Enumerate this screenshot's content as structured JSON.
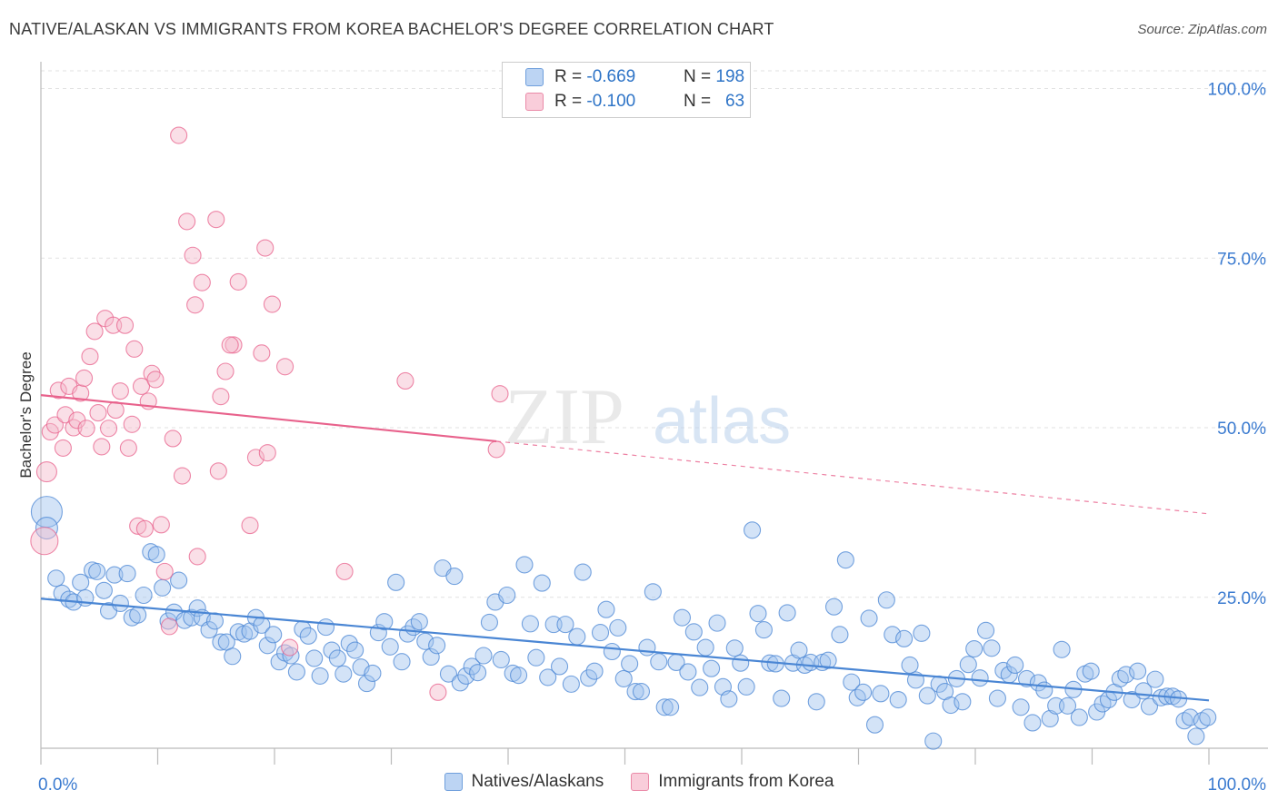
{
  "title": "NATIVE/ALASKAN VS IMMIGRANTS FROM KOREA BACHELOR'S DEGREE CORRELATION CHART",
  "source": "Source: ZipAtlas.com",
  "watermark": {
    "zip": "ZIP",
    "atlas": "atlas"
  },
  "legend_top": [
    {
      "r_label": "R = ",
      "r_value": "-0.669",
      "n_label": "N = ",
      "n_value": "198",
      "color": "#9dc0ee"
    },
    {
      "r_label": "R = ",
      "r_value": "-0.100",
      "n_label": "N = ",
      "n_value": "63",
      "color": "#f5b8ca"
    }
  ],
  "legend_bottom": [
    {
      "label": "Natives/Alaskans",
      "color": "#9dc0ee"
    },
    {
      "label": "Immigrants from Korea",
      "color": "#f5b8ca"
    }
  ],
  "chart_data": {
    "type": "scatter",
    "title": "NATIVE/ALASKAN VS IMMIGRANTS FROM KOREA BACHELOR'S DEGREE CORRELATION CHART",
    "xlabel": "",
    "ylabel": "Bachelor's Degree",
    "xlim": [
      0,
      100
    ],
    "ylim": [
      0,
      105
    ],
    "x_tick_labels": [
      "0.0%",
      "100.0%"
    ],
    "y_tick_labels": [
      "25.0%",
      "50.0%",
      "75.0%",
      "100.0%"
    ],
    "y_ticks": [
      25,
      50,
      75,
      100
    ],
    "grid": true,
    "series": [
      {
        "name": "Natives/Alaskans",
        "color": "#4a86d4",
        "fill": "#9dc0ee",
        "trend": {
          "x": [
            0,
            100
          ],
          "y": [
            24.8,
            9.8
          ],
          "style": "solid"
        },
        "points": [
          [
            0.5,
            37.6
          ],
          [
            0.5,
            35.2
          ],
          [
            1.3,
            27.8
          ],
          [
            1.8,
            25.6
          ],
          [
            2.4,
            24.7
          ],
          [
            2.8,
            24.3
          ],
          [
            3.4,
            27.2
          ],
          [
            3.8,
            24.9
          ],
          [
            4.4,
            29.0
          ],
          [
            4.8,
            28.8
          ],
          [
            5.4,
            26.0
          ],
          [
            5.8,
            23.0
          ],
          [
            6.3,
            28.3
          ],
          [
            6.8,
            24.1
          ],
          [
            7.4,
            28.5
          ],
          [
            7.8,
            22.0
          ],
          [
            8.3,
            22.4
          ],
          [
            8.8,
            25.3
          ],
          [
            9.4,
            31.7
          ],
          [
            9.9,
            31.3
          ],
          [
            10.4,
            26.4
          ],
          [
            10.9,
            21.5
          ],
          [
            11.4,
            22.8
          ],
          [
            11.8,
            27.5
          ],
          [
            12.3,
            21.6
          ],
          [
            12.9,
            22.0
          ],
          [
            13.4,
            23.4
          ],
          [
            13.8,
            22.0
          ],
          [
            14.4,
            20.2
          ],
          [
            14.9,
            21.5
          ],
          [
            15.4,
            18.4
          ],
          [
            15.9,
            18.4
          ],
          [
            16.4,
            16.3
          ],
          [
            16.9,
            19.9
          ],
          [
            17.4,
            19.6
          ],
          [
            17.9,
            20.0
          ],
          [
            18.4,
            22.0
          ],
          [
            18.9,
            20.9
          ],
          [
            19.4,
            17.9
          ],
          [
            19.9,
            19.5
          ],
          [
            20.4,
            15.5
          ],
          [
            20.9,
            16.8
          ],
          [
            21.4,
            16.4
          ],
          [
            21.9,
            14.0
          ],
          [
            22.4,
            20.3
          ],
          [
            22.9,
            19.3
          ],
          [
            23.4,
            16.0
          ],
          [
            23.9,
            13.4
          ],
          [
            24.4,
            20.6
          ],
          [
            24.9,
            17.2
          ],
          [
            25.4,
            16.0
          ],
          [
            25.9,
            13.7
          ],
          [
            26.4,
            18.2
          ],
          [
            26.9,
            17.2
          ],
          [
            27.4,
            14.7
          ],
          [
            27.9,
            12.3
          ],
          [
            28.4,
            13.8
          ],
          [
            28.9,
            19.8
          ],
          [
            29.4,
            21.4
          ],
          [
            29.9,
            17.7
          ],
          [
            30.4,
            27.2
          ],
          [
            30.9,
            15.5
          ],
          [
            31.4,
            19.6
          ],
          [
            31.9,
            20.6
          ],
          [
            32.4,
            21.4
          ],
          [
            32.9,
            18.5
          ],
          [
            33.4,
            16.2
          ],
          [
            33.9,
            17.9
          ],
          [
            34.4,
            29.3
          ],
          [
            34.9,
            13.7
          ],
          [
            35.4,
            28.1
          ],
          [
            35.9,
            12.4
          ],
          [
            36.4,
            13.4
          ],
          [
            36.9,
            14.8
          ],
          [
            37.4,
            13.9
          ],
          [
            37.9,
            16.4
          ],
          [
            38.4,
            21.3
          ],
          [
            38.9,
            24.3
          ],
          [
            39.4,
            15.8
          ],
          [
            39.9,
            25.3
          ],
          [
            40.4,
            13.8
          ],
          [
            40.9,
            13.5
          ],
          [
            41.4,
            29.8
          ],
          [
            41.9,
            21.1
          ],
          [
            42.4,
            16.1
          ],
          [
            42.9,
            27.1
          ],
          [
            43.4,
            13.2
          ],
          [
            43.9,
            21.0
          ],
          [
            44.4,
            14.8
          ],
          [
            44.9,
            21.0
          ],
          [
            45.4,
            12.2
          ],
          [
            45.9,
            19.2
          ],
          [
            46.4,
            28.7
          ],
          [
            46.9,
            13.1
          ],
          [
            47.4,
            14.1
          ],
          [
            47.9,
            19.8
          ],
          [
            48.4,
            23.2
          ],
          [
            48.9,
            17.0
          ],
          [
            49.4,
            20.5
          ],
          [
            49.9,
            13.0
          ],
          [
            50.4,
            15.2
          ],
          [
            50.9,
            11.1
          ],
          [
            51.4,
            11.1
          ],
          [
            51.9,
            17.6
          ],
          [
            52.4,
            25.8
          ],
          [
            52.9,
            15.5
          ],
          [
            53.4,
            8.8
          ],
          [
            53.9,
            8.8
          ],
          [
            54.4,
            15.4
          ],
          [
            54.9,
            22.0
          ],
          [
            55.4,
            14.0
          ],
          [
            55.9,
            19.9
          ],
          [
            56.4,
            11.7
          ],
          [
            56.9,
            17.6
          ],
          [
            57.4,
            14.5
          ],
          [
            57.9,
            21.2
          ],
          [
            58.4,
            11.8
          ],
          [
            58.9,
            10.0
          ],
          [
            59.4,
            17.5
          ],
          [
            59.9,
            15.3
          ],
          [
            60.4,
            11.8
          ],
          [
            60.9,
            34.9
          ],
          [
            61.4,
            22.6
          ],
          [
            61.9,
            20.2
          ],
          [
            62.4,
            15.3
          ],
          [
            62.9,
            15.2
          ],
          [
            63.4,
            10.1
          ],
          [
            63.9,
            22.7
          ],
          [
            64.4,
            15.3
          ],
          [
            64.9,
            17.2
          ],
          [
            65.4,
            15.0
          ],
          [
            65.9,
            15.4
          ],
          [
            66.4,
            9.6
          ],
          [
            66.9,
            15.4
          ],
          [
            67.4,
            15.7
          ],
          [
            67.9,
            23.6
          ],
          [
            68.4,
            19.5
          ],
          [
            68.9,
            30.5
          ],
          [
            69.4,
            12.5
          ],
          [
            69.9,
            10.2
          ],
          [
            70.4,
            11.0
          ],
          [
            70.9,
            21.9
          ],
          [
            71.4,
            6.2
          ],
          [
            71.9,
            10.8
          ],
          [
            72.4,
            24.6
          ],
          [
            72.9,
            19.5
          ],
          [
            73.4,
            9.9
          ],
          [
            73.9,
            18.9
          ],
          [
            74.4,
            15.0
          ],
          [
            74.9,
            12.8
          ],
          [
            75.4,
            19.7
          ],
          [
            75.9,
            10.5
          ],
          [
            76.4,
            3.8
          ],
          [
            76.9,
            12.2
          ],
          [
            77.4,
            11.1
          ],
          [
            77.9,
            9.1
          ],
          [
            78.4,
            13.0
          ],
          [
            78.9,
            9.6
          ],
          [
            79.4,
            15.1
          ],
          [
            79.9,
            17.4
          ],
          [
            80.4,
            13.1
          ],
          [
            80.9,
            20.1
          ],
          [
            81.4,
            17.5
          ],
          [
            81.9,
            10.1
          ],
          [
            82.4,
            14.2
          ],
          [
            82.9,
            13.6
          ],
          [
            83.4,
            15.0
          ],
          [
            83.9,
            8.8
          ],
          [
            84.4,
            13.0
          ],
          [
            84.9,
            6.5
          ],
          [
            85.4,
            12.4
          ],
          [
            85.9,
            11.3
          ],
          [
            86.4,
            7.1
          ],
          [
            86.9,
            9.0
          ],
          [
            87.4,
            17.3
          ],
          [
            87.9,
            9.0
          ],
          [
            88.4,
            11.4
          ],
          [
            88.9,
            7.3
          ],
          [
            89.4,
            13.7
          ],
          [
            89.9,
            14.1
          ],
          [
            90.4,
            8.1
          ],
          [
            90.9,
            9.3
          ],
          [
            91.4,
            9.9
          ],
          [
            91.9,
            11.0
          ],
          [
            92.4,
            13.0
          ],
          [
            92.9,
            13.6
          ],
          [
            93.4,
            9.9
          ],
          [
            93.9,
            14.1
          ],
          [
            94.4,
            11.2
          ],
          [
            94.9,
            8.9
          ],
          [
            95.4,
            12.9
          ],
          [
            95.9,
            10.2
          ],
          [
            96.4,
            10.4
          ],
          [
            96.9,
            10.4
          ],
          [
            97.4,
            10.0
          ],
          [
            97.9,
            6.8
          ],
          [
            98.4,
            7.3
          ],
          [
            98.9,
            4.5
          ],
          [
            99.4,
            6.8
          ],
          [
            99.9,
            7.3
          ]
        ]
      },
      {
        "name": "Immigrants from Korea",
        "color": "#e8628c",
        "fill": "#f5b8ca",
        "trend": {
          "x": [
            0,
            39
          ],
          "y": [
            54.8,
            48.0
          ],
          "style": "solid",
          "extend_to": [
            100,
            37.3
          ],
          "extend_style": "dashed"
        },
        "points": [
          [
            0.3,
            33.3
          ],
          [
            0.5,
            43.5
          ],
          [
            0.8,
            49.4
          ],
          [
            1.2,
            50.4
          ],
          [
            1.5,
            55.5
          ],
          [
            1.9,
            47.0
          ],
          [
            2.1,
            51.9
          ],
          [
            2.4,
            56.1
          ],
          [
            2.8,
            50.0
          ],
          [
            3.1,
            51.1
          ],
          [
            3.4,
            55.1
          ],
          [
            3.7,
            57.3
          ],
          [
            3.9,
            49.9
          ],
          [
            4.2,
            60.5
          ],
          [
            4.6,
            64.2
          ],
          [
            4.9,
            52.2
          ],
          [
            5.2,
            47.2
          ],
          [
            5.5,
            66.1
          ],
          [
            5.8,
            49.9
          ],
          [
            6.2,
            65.1
          ],
          [
            6.4,
            52.6
          ],
          [
            6.8,
            55.4
          ],
          [
            7.2,
            65.1
          ],
          [
            7.5,
            47.0
          ],
          [
            7.8,
            50.5
          ],
          [
            8.0,
            61.6
          ],
          [
            8.3,
            35.5
          ],
          [
            8.6,
            56.1
          ],
          [
            8.9,
            35.1
          ],
          [
            9.2,
            53.9
          ],
          [
            9.5,
            58.0
          ],
          [
            9.8,
            57.1
          ],
          [
            10.3,
            35.7
          ],
          [
            10.6,
            28.8
          ],
          [
            11.0,
            20.7
          ],
          [
            11.3,
            48.4
          ],
          [
            11.8,
            93.1
          ],
          [
            12.1,
            42.9
          ],
          [
            12.5,
            80.4
          ],
          [
            13.0,
            75.4
          ],
          [
            13.2,
            68.1
          ],
          [
            13.8,
            71.4
          ],
          [
            15.0,
            80.7
          ],
          [
            15.2,
            43.6
          ],
          [
            15.4,
            54.6
          ],
          [
            15.8,
            58.3
          ],
          [
            16.5,
            62.2
          ],
          [
            16.9,
            71.5
          ],
          [
            16.2,
            62.2
          ],
          [
            17.9,
            35.6
          ],
          [
            18.4,
            45.6
          ],
          [
            18.9,
            61.0
          ],
          [
            19.2,
            76.5
          ],
          [
            19.4,
            46.3
          ],
          [
            19.8,
            68.2
          ],
          [
            20.9,
            59.0
          ],
          [
            21.3,
            17.6
          ],
          [
            26.0,
            28.8
          ],
          [
            31.2,
            56.9
          ],
          [
            34.0,
            11.0
          ],
          [
            39.0,
            46.8
          ],
          [
            39.3,
            55.0
          ],
          [
            13.4,
            31.0
          ]
        ]
      }
    ]
  }
}
